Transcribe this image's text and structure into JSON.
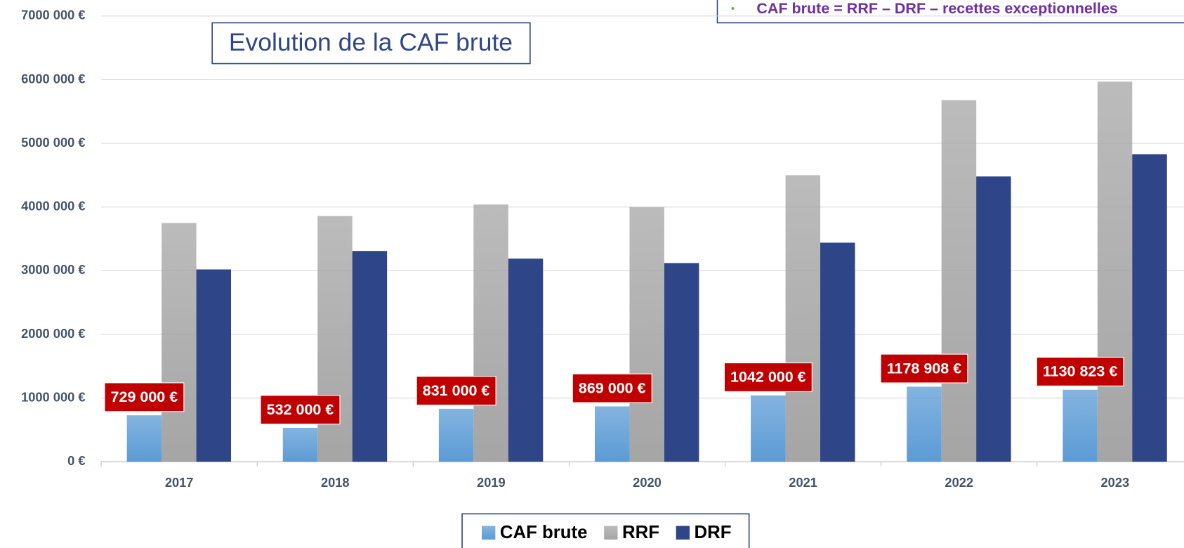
{
  "chart_data": {
    "type": "bar",
    "title": "Evolution de la CAF brute",
    "annotation": "CAF brute = RRF – DRF – recettes exceptionnelles",
    "categories": [
      "2017",
      "2018",
      "2019",
      "2020",
      "2021",
      "2022",
      "2023"
    ],
    "series": [
      {
        "name": "CAF brute",
        "color": "#5b9bd5",
        "values": [
          729000,
          532000,
          831000,
          869000,
          1042000,
          1178908,
          1130823
        ],
        "value_labels": [
          "729 000 €",
          "532 000 €",
          "831 000 €",
          "869 000 €",
          "1042 000 €",
          "1178 908 €",
          "1130 823 €"
        ]
      },
      {
        "name": "RRF",
        "color": "#a5a5a5",
        "values": [
          3750000,
          3860000,
          4040000,
          4000000,
          4500000,
          5680000,
          5970000
        ]
      },
      {
        "name": "DRF",
        "color": "#2e4587",
        "values": [
          3020000,
          3310000,
          3190000,
          3120000,
          3440000,
          4480000,
          4830000
        ]
      }
    ],
    "ylim": [
      0,
      7000000
    ],
    "yticks": [
      {
        "value": 0,
        "label": "0 €"
      },
      {
        "value": 1000000,
        "label": "1000 000 €"
      },
      {
        "value": 2000000,
        "label": "2000 000 €"
      },
      {
        "value": 3000000,
        "label": "3000 000 €"
      },
      {
        "value": 4000000,
        "label": "4000 000 €"
      },
      {
        "value": 5000000,
        "label": "5000 000 €"
      },
      {
        "value": 6000000,
        "label": "6000 000 €"
      },
      {
        "value": 7000000,
        "label": "7000 000 €"
      }
    ],
    "grid": true,
    "legend": "bottom"
  }
}
